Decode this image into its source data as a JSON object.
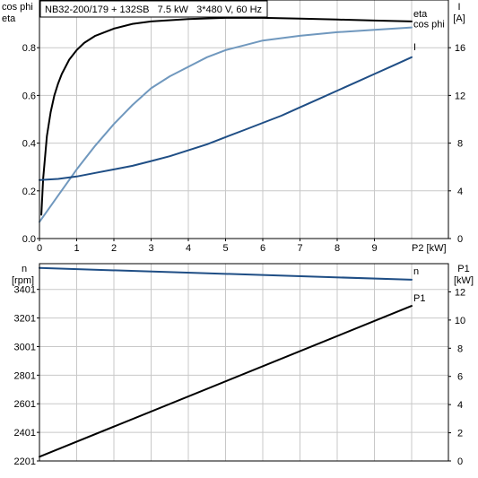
{
  "chart_data": [
    {
      "type": "line",
      "title": "NB32-200/179 + 132SB   7.5 kW   3*480 V, 60 Hz",
      "xlabel": "P2 [kW]",
      "xlim": [
        0,
        10
      ],
      "xticks": [
        "0",
        "1",
        "2",
        "3",
        "4",
        "5",
        "6",
        "7",
        "8",
        "9"
      ],
      "left_axis": {
        "label_lines": [
          "cos phi",
          "eta"
        ],
        "ylim": [
          0,
          1
        ],
        "ticks": [
          "0.0",
          "0.2",
          "0.4",
          "0.6",
          "0.8"
        ],
        "tick_values": [
          0,
          0.2,
          0.4,
          0.6,
          0.8
        ]
      },
      "right_axis": {
        "label_lines": [
          "I",
          "[A]"
        ],
        "ylim": [
          0,
          20
        ],
        "ticks": [
          "0",
          "4",
          "8",
          "12",
          "16"
        ],
        "tick_values": [
          0,
          4,
          8,
          12,
          16
        ]
      },
      "grid": true,
      "series": [
        {
          "name": "eta",
          "axis": "left",
          "color": "#000000",
          "x": [
            0.05,
            0.1,
            0.2,
            0.3,
            0.4,
            0.5,
            0.6,
            0.8,
            1,
            1.2,
            1.5,
            2,
            2.5,
            3,
            4,
            5,
            6,
            7,
            8,
            9,
            10
          ],
          "y": [
            0.1,
            0.25,
            0.43,
            0.53,
            0.6,
            0.65,
            0.69,
            0.75,
            0.79,
            0.82,
            0.85,
            0.88,
            0.9,
            0.91,
            0.92,
            0.925,
            0.925,
            0.922,
            0.918,
            0.914,
            0.91
          ]
        },
        {
          "name": "cos phi",
          "axis": "left",
          "color": "#7098be",
          "x": [
            0,
            0.5,
            1,
            1.5,
            2,
            2.5,
            3,
            3.5,
            4,
            4.5,
            5,
            6,
            7,
            8,
            9,
            10
          ],
          "y": [
            0.07,
            0.18,
            0.29,
            0.39,
            0.48,
            0.56,
            0.63,
            0.68,
            0.72,
            0.76,
            0.79,
            0.83,
            0.85,
            0.865,
            0.875,
            0.885
          ]
        },
        {
          "name": "I",
          "axis": "right",
          "color": "#1f4e85",
          "x": [
            0,
            0.5,
            1,
            1.5,
            2,
            2.5,
            3,
            3.5,
            4,
            4.5,
            5,
            5.5,
            6,
            6.5,
            7,
            7.5,
            8,
            8.5,
            9,
            9.5,
            10
          ],
          "y": [
            4.9,
            5.0,
            5.2,
            5.5,
            5.8,
            6.1,
            6.5,
            6.9,
            7.4,
            7.9,
            8.5,
            9.1,
            9.7,
            10.3,
            11.0,
            11.7,
            12.4,
            13.1,
            13.8,
            14.5,
            15.2
          ]
        }
      ]
    },
    {
      "type": "line",
      "xlim": [
        0,
        10
      ],
      "left_axis": {
        "label_lines": [
          "n",
          "[rpm]"
        ],
        "ylim": [
          2201,
          3581
        ],
        "ticks": [
          "2201",
          "2401",
          "2601",
          "2801",
          "3001",
          "3201",
          "3401"
        ],
        "tick_values": [
          2201,
          2401,
          2601,
          2801,
          3001,
          3201,
          3401
        ]
      },
      "right_axis": {
        "label_lines": [
          "P1",
          "[kW]"
        ],
        "ylim": [
          0,
          14
        ],
        "ticks": [
          "0",
          "2",
          "4",
          "6",
          "8",
          "10",
          "12"
        ],
        "tick_values": [
          0,
          2,
          4,
          6,
          8,
          10,
          12
        ]
      },
      "grid": true,
      "series": [
        {
          "name": "n",
          "axis": "left",
          "color": "#1f4e85",
          "x": [
            0,
            10
          ],
          "y": [
            3551,
            3469
          ]
        },
        {
          "name": "P1",
          "axis": "right",
          "color": "#000000",
          "x": [
            0,
            10
          ],
          "y": [
            0.3,
            11.0
          ]
        }
      ]
    }
  ]
}
